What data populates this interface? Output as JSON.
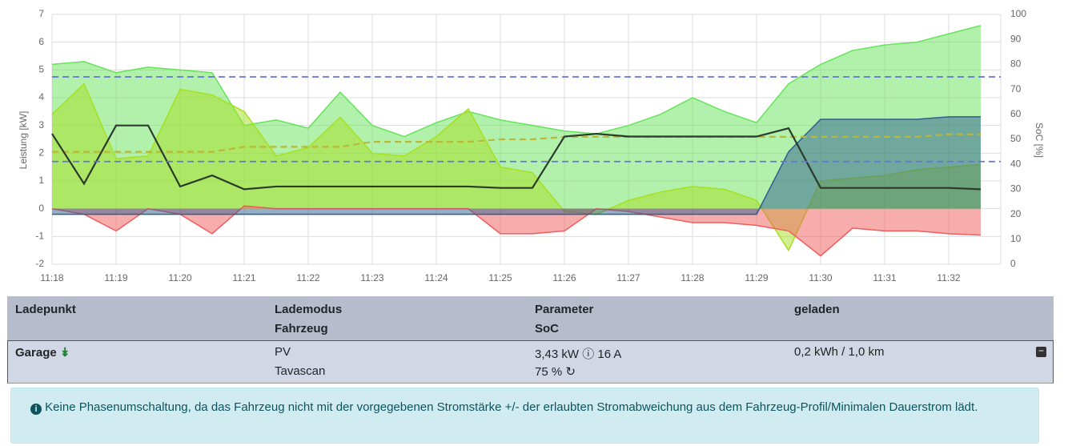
{
  "chart_data": {
    "type": "area",
    "y_label": "Leistung [kW]",
    "y2_label": "SoC [%]",
    "categories": [
      "11:18",
      null,
      "11:19",
      null,
      "11:20",
      null,
      "11:21",
      null,
      "11:22",
      null,
      "11:23",
      null,
      "11:24",
      null,
      "11:25",
      null,
      "11:26",
      null,
      "11:27",
      null,
      "11:28",
      null,
      "11:29",
      null,
      "11:30",
      null,
      "11:31",
      null,
      "11:32",
      null
    ],
    "ylim": [
      -2,
      7
    ],
    "yticks": [
      -2,
      -1,
      0,
      1,
      2,
      3,
      4,
      5,
      6,
      7
    ],
    "y2lim": [
      0,
      100
    ],
    "y2ticks": [
      0,
      10,
      20,
      30,
      40,
      50,
      60,
      70,
      80,
      90,
      100
    ],
    "grid": true,
    "hlines": {
      "color": "#6673d9",
      "values": [
        4.75,
        1.7
      ]
    },
    "series": [
      {
        "color": "#66e35a",
        "fill": true,
        "values": [
          5.2,
          5.3,
          4.9,
          5.1,
          5.0,
          4.9,
          3.0,
          3.2,
          2.9,
          4.2,
          3.0,
          2.6,
          3.1,
          3.5,
          3.2,
          3.0,
          2.8,
          2.7,
          3.0,
          3.4,
          4.0,
          3.5,
          3.1,
          4.5,
          5.2,
          5.7,
          5.9,
          6.0,
          6.3,
          6.6
        ]
      },
      {
        "color": "#a6e01f",
        "fill": true,
        "values": [
          3.4,
          4.5,
          1.8,
          1.9,
          4.3,
          4.1,
          3.5,
          1.9,
          2.2,
          3.3,
          2.0,
          1.9,
          2.6,
          3.6,
          1.5,
          1.3,
          -0.1,
          -0.2,
          0.3,
          0.6,
          0.8,
          0.7,
          0.3,
          -1.5,
          1.0,
          1.1,
          1.2,
          1.4,
          1.5,
          1.6
        ]
      },
      {
        "color": "#f25c5c",
        "fill": true,
        "values": [
          0,
          -0.2,
          -0.8,
          0,
          -0.2,
          -0.9,
          0.1,
          0,
          0,
          0,
          0,
          0,
          0,
          0,
          -0.9,
          -0.9,
          -0.8,
          0,
          -0.1,
          -0.3,
          -0.5,
          -0.5,
          -0.6,
          -0.8,
          -1.7,
          -0.7,
          -0.8,
          -0.8,
          -0.9,
          -0.95
        ]
      },
      {
        "color": "#2e5f8f",
        "fill": true,
        "axis": "y2",
        "values": [
          20,
          20,
          20,
          20,
          20,
          20,
          20,
          20,
          20,
          20,
          20,
          20,
          20,
          20,
          20,
          20,
          20,
          20,
          20,
          20,
          20,
          20,
          20,
          45,
          58,
          58,
          58,
          58,
          59,
          59
        ]
      },
      {
        "color": "#b8b83a",
        "fill": false,
        "dash": true,
        "axis": "y2",
        "values": [
          45,
          45,
          45,
          45,
          45,
          45,
          47,
          47,
          47,
          47,
          49,
          49,
          49,
          49,
          50,
          50,
          51,
          51,
          51,
          51,
          51,
          51,
          51,
          51,
          51,
          51,
          51,
          51,
          52,
          52
        ]
      },
      {
        "color": "#2b3a2b",
        "fill": false,
        "values": [
          2.7,
          0.9,
          3.0,
          3.0,
          0.8,
          1.2,
          0.7,
          0.8,
          0.8,
          0.8,
          0.8,
          0.8,
          0.8,
          0.8,
          0.75,
          0.75,
          2.6,
          2.7,
          2.6,
          2.6,
          2.6,
          2.6,
          2.6,
          2.9,
          0.75,
          0.75,
          0.75,
          0.75,
          0.75,
          0.7
        ]
      }
    ]
  },
  "table": {
    "headers": [
      "Ladepunkt",
      "Lademodus",
      "Fahrzeug",
      "Parameter",
      "SoC",
      "geladen"
    ],
    "row": {
      "ladepunkt": "Garage",
      "lademodus": "PV",
      "fahrzeug": "Tavascan",
      "power": "3,43 kW",
      "current": "16 A",
      "soc": "75 %",
      "geladen": "0,2 kWh / 1,0 km"
    }
  },
  "alert": "Keine Phasenumschaltung, da das Fahrzeug nicht mit der vorgegebenen Stromstärke +/- der erlaubten Stromabweichung aus dem Fahrzeug-Profil/Minimalen Dauerstrom lädt."
}
